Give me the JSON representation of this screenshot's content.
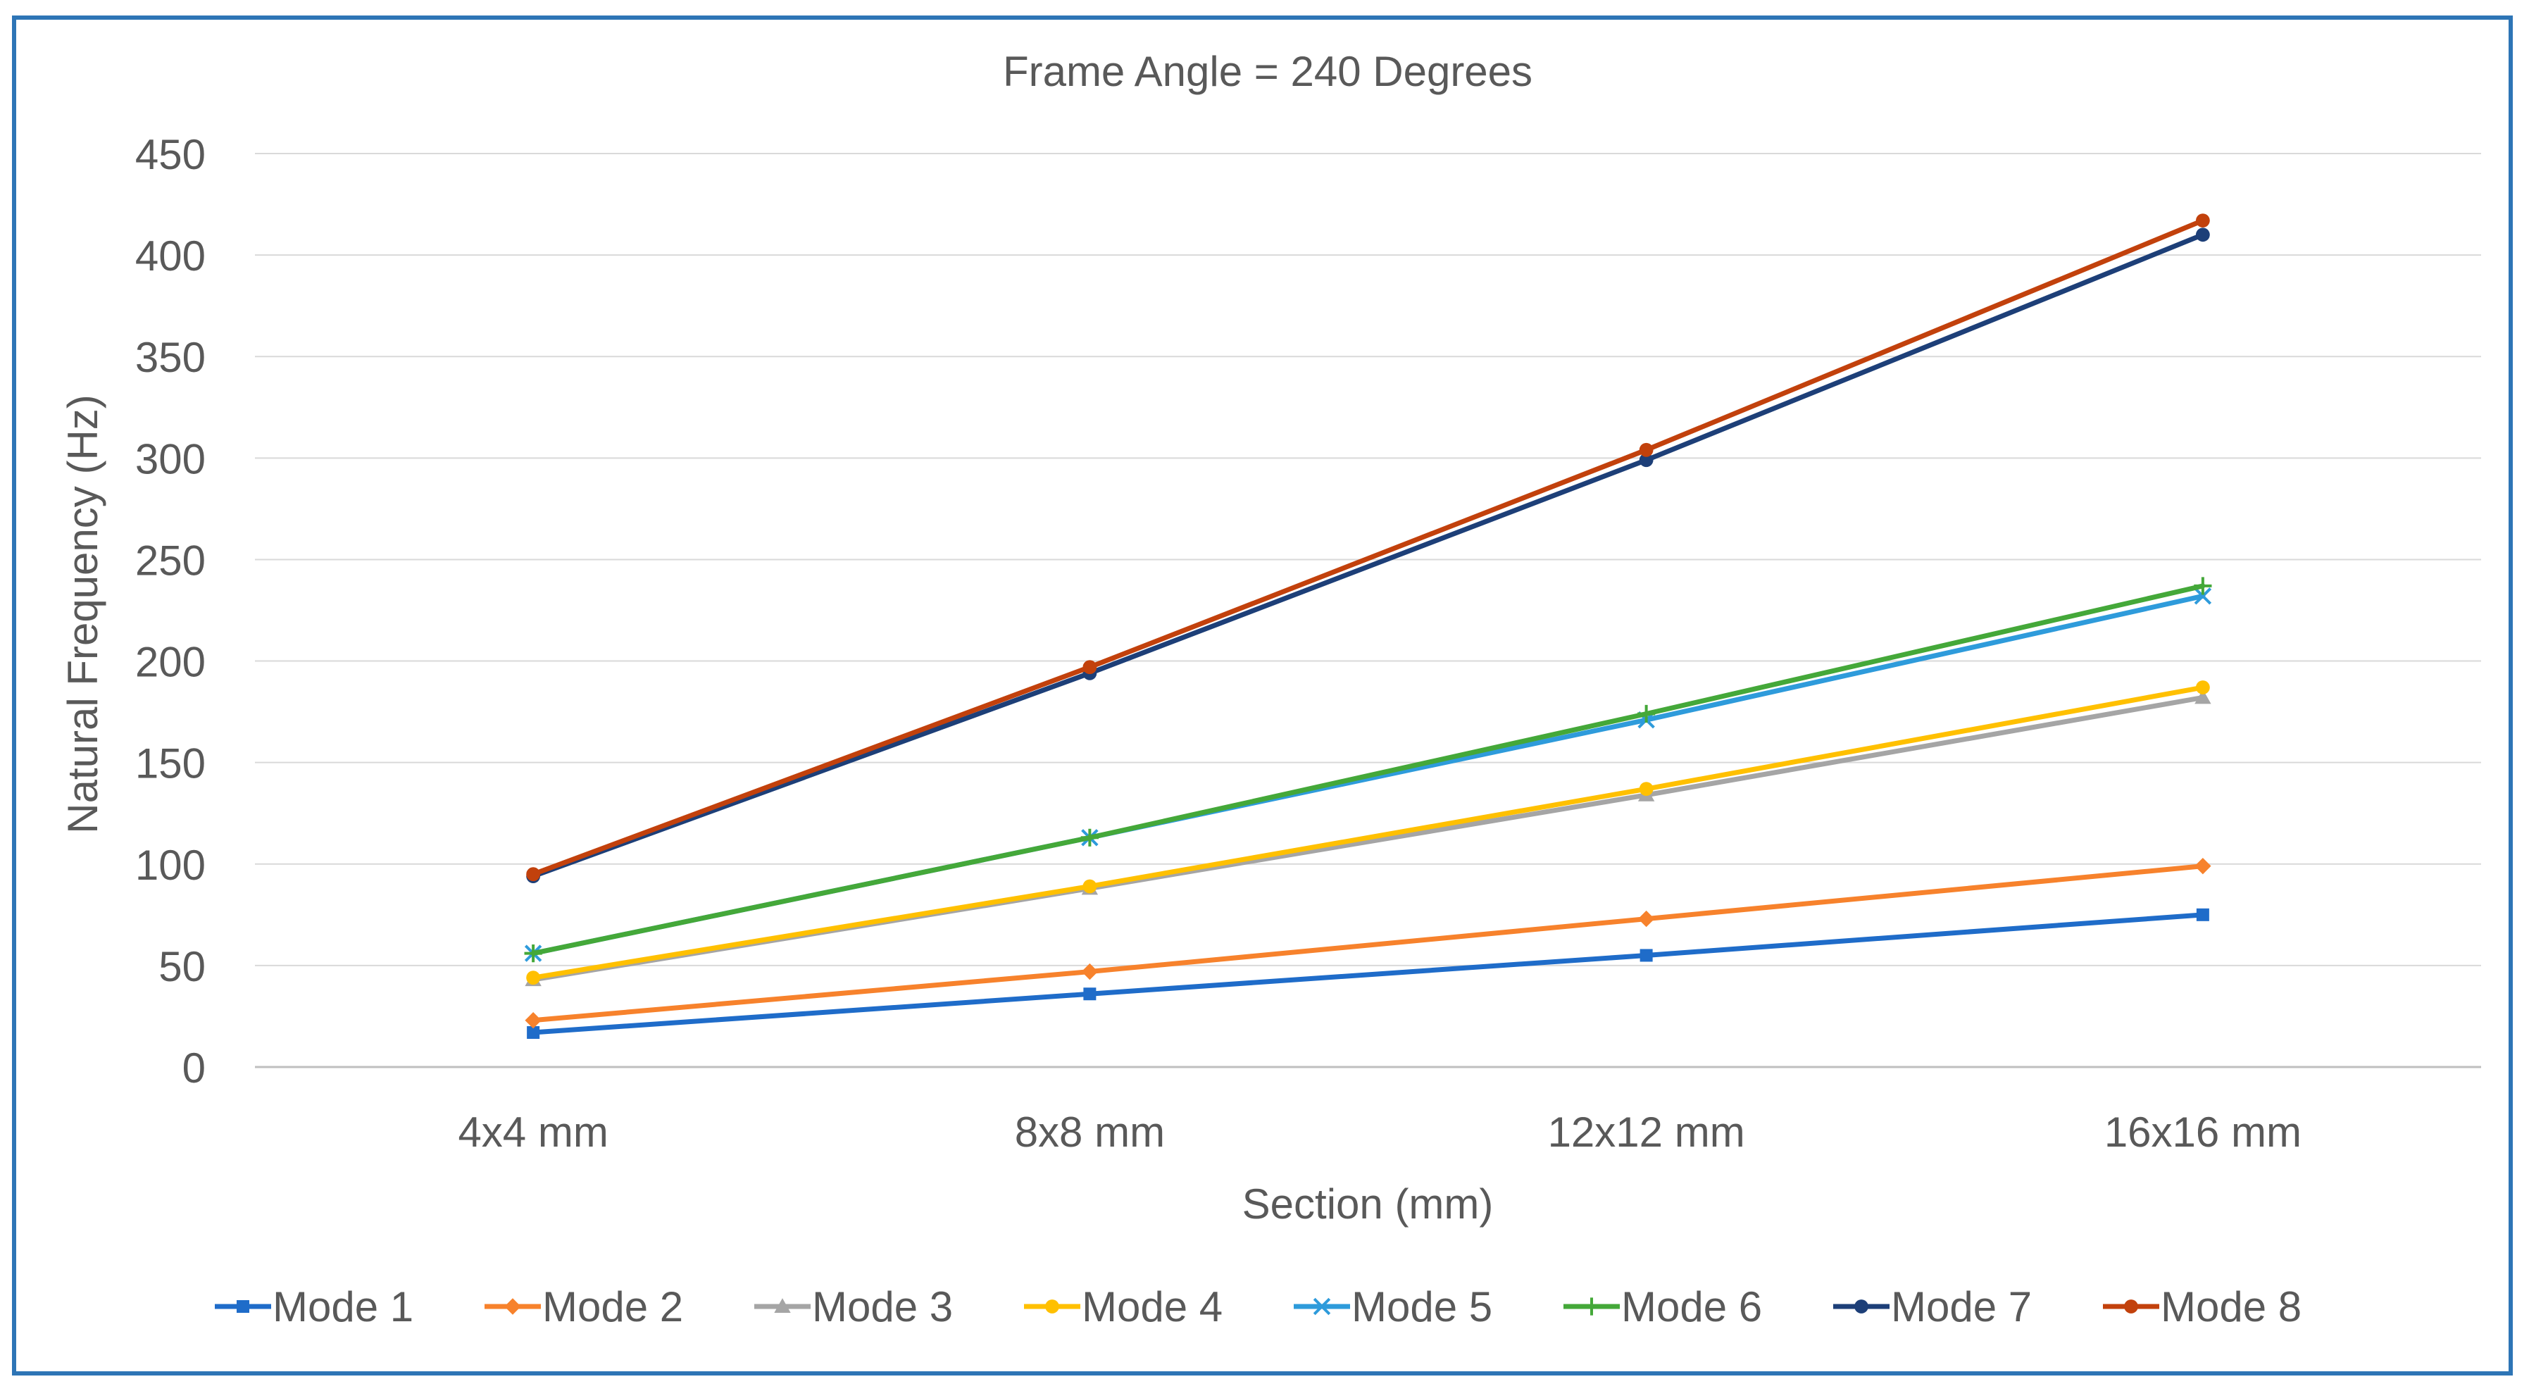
{
  "chart_data": {
    "type": "line",
    "title": "Frame Angle = 240 Degrees",
    "xlabel": "Section (mm)",
    "ylabel": "Natural Frequency (Hz)",
    "categories": [
      "4x4 mm",
      "8x8 mm",
      "12x12 mm",
      "16x16 mm"
    ],
    "ylim": [
      0,
      450
    ],
    "yticks": [
      0,
      50,
      100,
      150,
      200,
      250,
      300,
      350,
      400,
      450
    ],
    "grid": true,
    "legend_position": "bottom",
    "series": [
      {
        "name": "Mode 1",
        "values": [
          17,
          36,
          55,
          75
        ],
        "color": "#1F6CC9",
        "marker": "square"
      },
      {
        "name": "Mode 2",
        "values": [
          23,
          47,
          73,
          99
        ],
        "color": "#F7822C",
        "marker": "diamond"
      },
      {
        "name": "Mode 3",
        "values": [
          43,
          88,
          134,
          182
        ],
        "color": "#A5A5A5",
        "marker": "triangle"
      },
      {
        "name": "Mode 4",
        "values": [
          44,
          89,
          137,
          187
        ],
        "color": "#FFC000",
        "marker": "circle"
      },
      {
        "name": "Mode 5",
        "values": [
          56,
          113,
          171,
          232
        ],
        "color": "#2E9BDB",
        "marker": "x"
      },
      {
        "name": "Mode 6",
        "values": [
          56,
          113,
          174,
          237
        ],
        "color": "#44A839",
        "marker": "plus"
      },
      {
        "name": "Mode 7",
        "values": [
          94,
          194,
          299,
          410
        ],
        "color": "#1D3F78",
        "marker": "circle"
      },
      {
        "name": "Mode 8",
        "values": [
          95,
          197,
          304,
          417
        ],
        "color": "#C2410C",
        "marker": "circle"
      }
    ]
  }
}
